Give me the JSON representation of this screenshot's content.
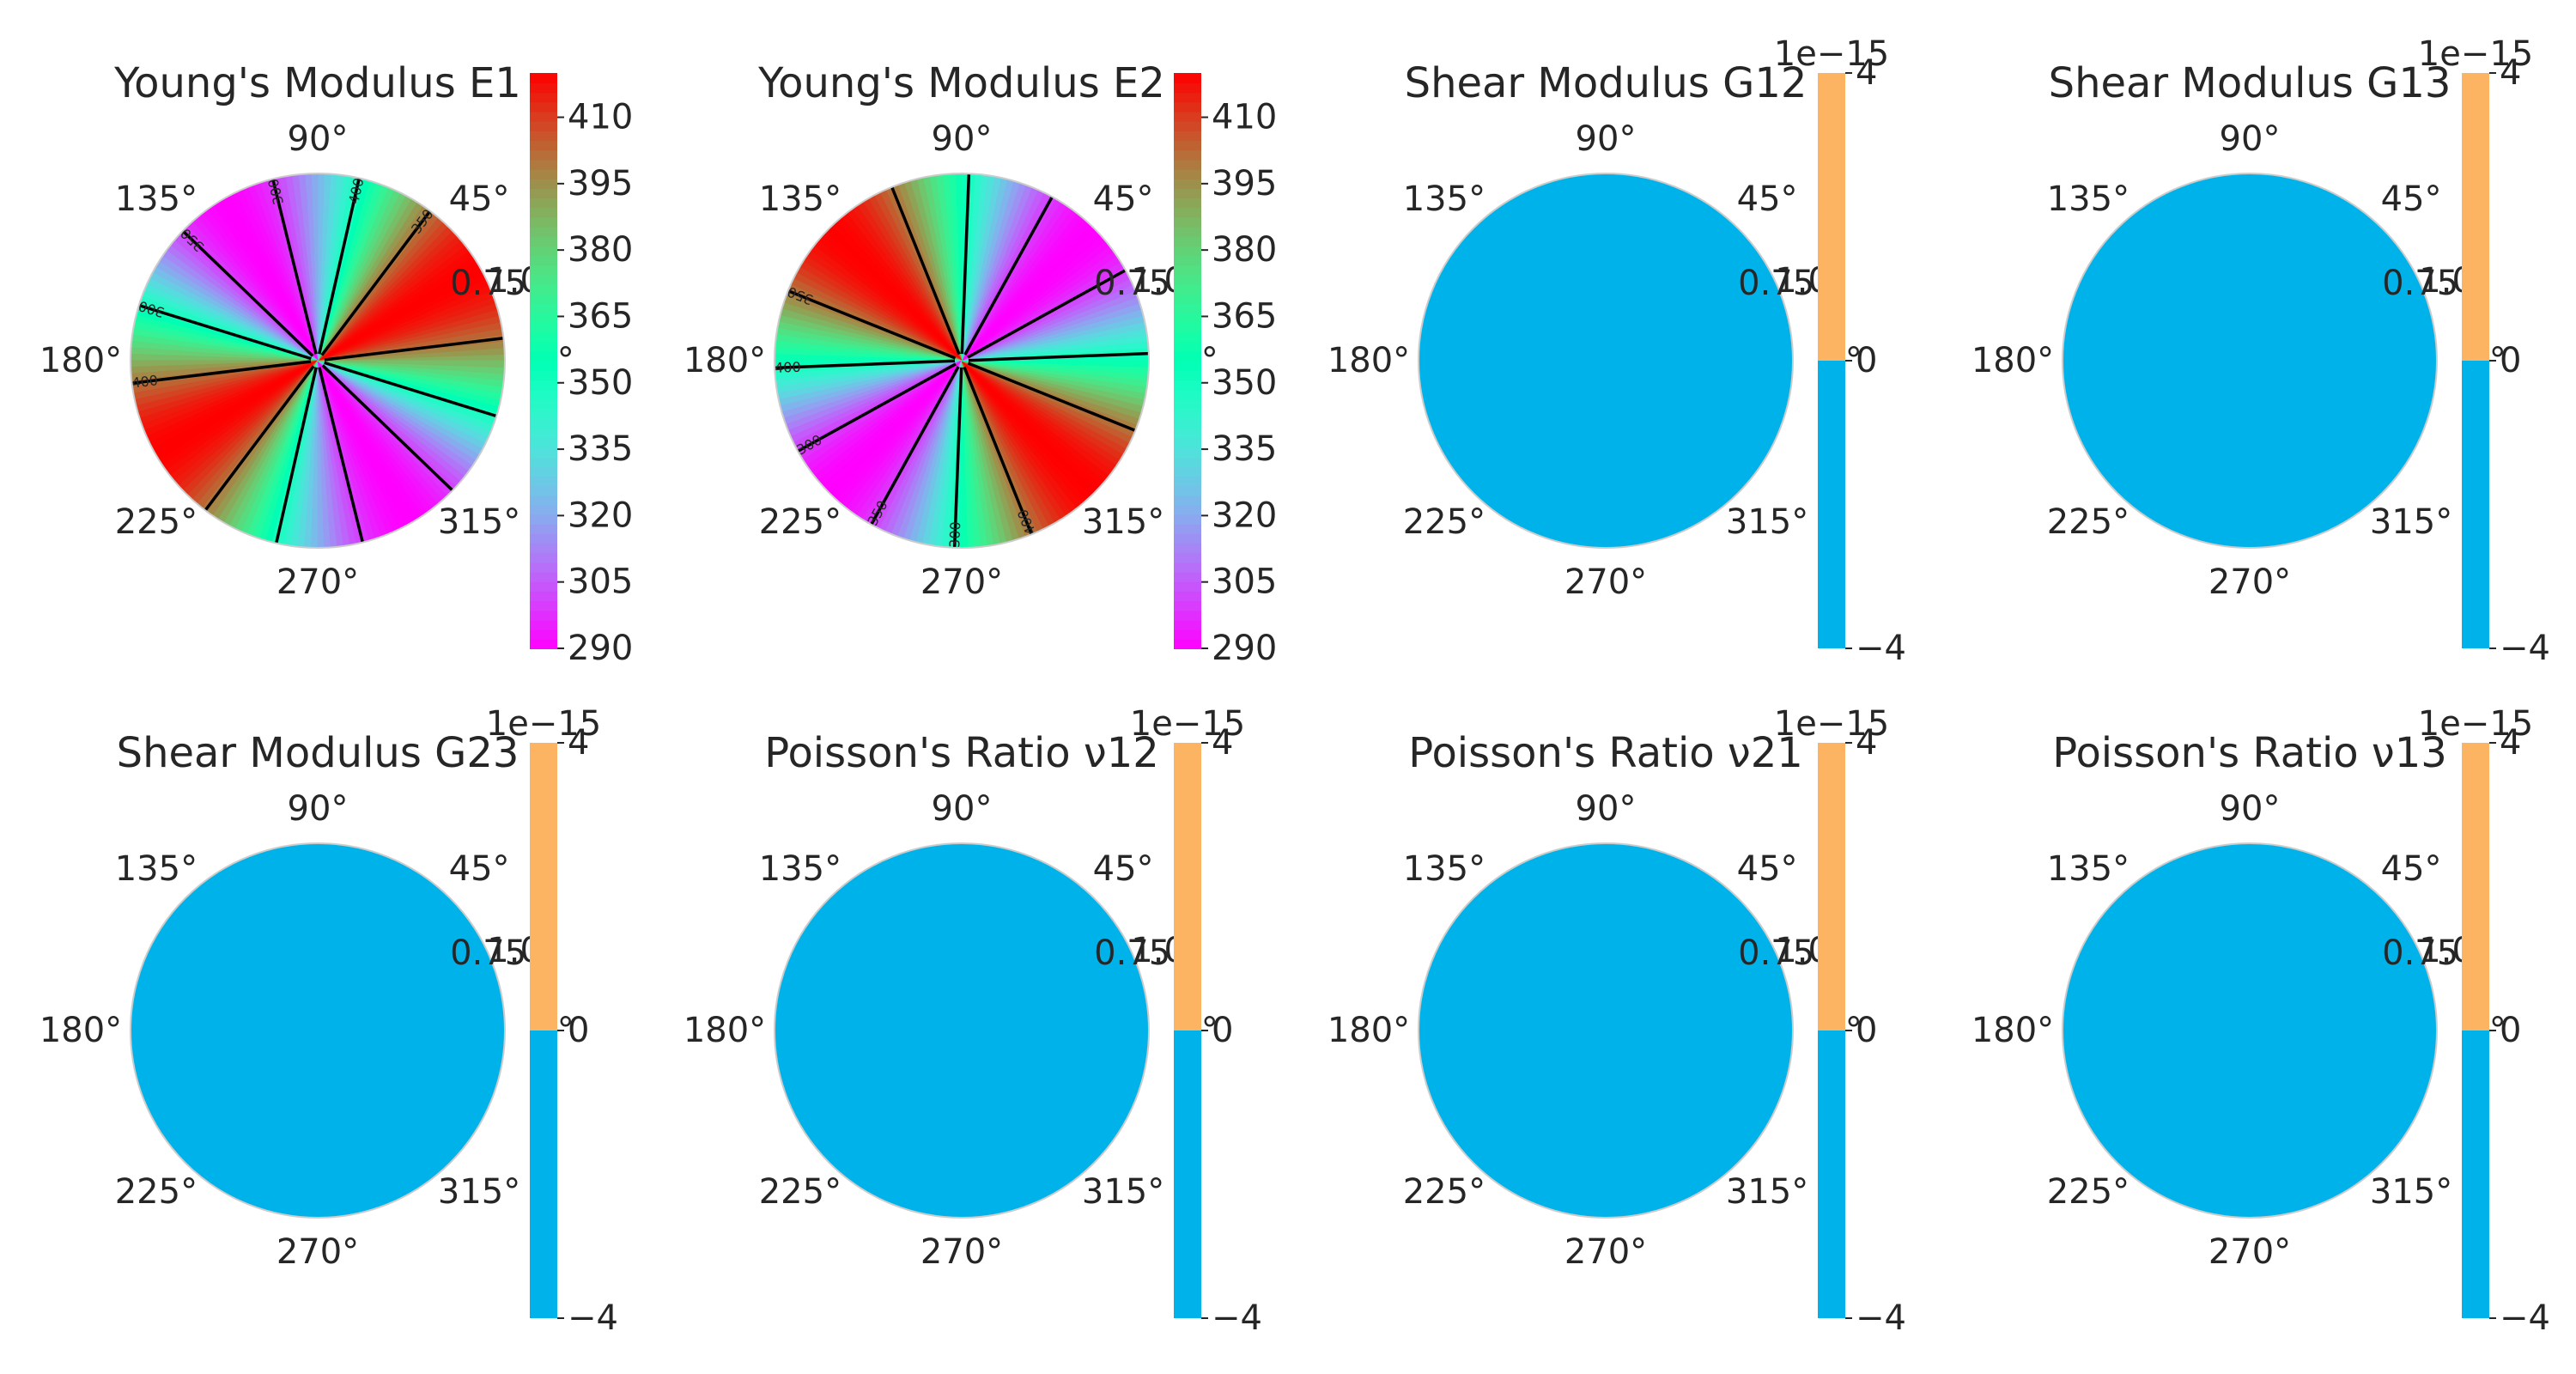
{
  "chart_data": [
    {
      "type": "heatmap",
      "subtype": "polar",
      "title": "Young's Modulus E1",
      "angle_labels": [
        "0°",
        "45°",
        "90°",
        "135°",
        "180°",
        "225°",
        "270°",
        "315°"
      ],
      "radial_tick_labels": [
        "1.0",
        "0.75"
      ],
      "colormap": "rainbow",
      "colorbar": {
        "min": 290,
        "max": 420,
        "ticks": [
          "290",
          "305",
          "320",
          "335",
          "350",
          "365",
          "380",
          "395",
          "410"
        ]
      },
      "field": {
        "angle_of_max_deg": 30,
        "min": 290,
        "max": 420
      },
      "contours": {
        "levels": [
          300,
          350,
          400
        ],
        "line_color": "#000000",
        "labels": [
          "300",
          "350",
          "400",
          "300",
          "350",
          "400",
          "0"
        ]
      }
    },
    {
      "type": "heatmap",
      "subtype": "polar",
      "title": "Young's Modulus E2",
      "angle_labels": [
        "0°",
        "45°",
        "90°",
        "135°",
        "180°",
        "225°",
        "270°",
        "315°"
      ],
      "radial_tick_labels": [
        "1.0",
        "0.75"
      ],
      "colormap": "rainbow",
      "colorbar": {
        "min": 290,
        "max": 420,
        "ticks": [
          "290",
          "305",
          "320",
          "335",
          "350",
          "365",
          "380",
          "395",
          "410"
        ]
      },
      "field": {
        "angle_of_max_deg": 135,
        "min": 290,
        "max": 420
      },
      "contours": {
        "levels": [
          300,
          350,
          400
        ],
        "line_color": "#000000",
        "labels": [
          "300",
          "350",
          "400",
          "300",
          "350",
          "400"
        ]
      }
    },
    {
      "type": "heatmap",
      "subtype": "polar",
      "title": "Shear Modulus G12",
      "angle_labels": [
        "0°",
        "45°",
        "90°",
        "135°",
        "180°",
        "225°",
        "270°",
        "315°"
      ],
      "radial_tick_labels": [
        "1.0",
        "0.75"
      ],
      "fill_color": "#00b2ea",
      "colorbar": {
        "offset_label": "1e−15",
        "ticks": [
          "−4",
          "0",
          "4"
        ],
        "upper_color": "#fdb462",
        "lower_color": "#00b2ea"
      }
    },
    {
      "type": "heatmap",
      "subtype": "polar",
      "title": "Shear Modulus G13",
      "angle_labels": [
        "0°",
        "45°",
        "90°",
        "135°",
        "180°",
        "225°",
        "270°",
        "315°"
      ],
      "radial_tick_labels": [
        "1.0",
        "0.75"
      ],
      "fill_color": "#00b2ea",
      "colorbar": {
        "offset_label": "1e−15",
        "ticks": [
          "−4",
          "0",
          "4"
        ],
        "upper_color": "#fdb462",
        "lower_color": "#00b2ea"
      }
    },
    {
      "type": "heatmap",
      "subtype": "polar",
      "title": "Shear Modulus G23",
      "angle_labels": [
        "0°",
        "45°",
        "90°",
        "135°",
        "180°",
        "225°",
        "270°",
        "315°"
      ],
      "radial_tick_labels": [
        "1.0",
        "0.75"
      ],
      "fill_color": "#00b2ea",
      "colorbar": {
        "offset_label": "1e−15",
        "ticks": [
          "−4",
          "0",
          "4"
        ],
        "upper_color": "#fdb462",
        "lower_color": "#00b2ea"
      }
    },
    {
      "type": "heatmap",
      "subtype": "polar",
      "title": "Poisson's Ratio ν12",
      "angle_labels": [
        "0°",
        "45°",
        "90°",
        "135°",
        "180°",
        "225°",
        "270°",
        "315°"
      ],
      "radial_tick_labels": [
        "1.0",
        "0.75"
      ],
      "fill_color": "#00b2ea",
      "colorbar": {
        "offset_label": "1e−15",
        "ticks": [
          "−4",
          "0",
          "4"
        ],
        "upper_color": "#fdb462",
        "lower_color": "#00b2ea"
      }
    },
    {
      "type": "heatmap",
      "subtype": "polar",
      "title": "Poisson's Ratio ν21",
      "angle_labels": [
        "0°",
        "45°",
        "90°",
        "135°",
        "180°",
        "225°",
        "270°",
        "315°"
      ],
      "radial_tick_labels": [
        "1.0",
        "0.75"
      ],
      "fill_color": "#00b2ea",
      "colorbar": {
        "offset_label": "1e−15",
        "ticks": [
          "−4",
          "0",
          "4"
        ],
        "upper_color": "#fdb462",
        "lower_color": "#00b2ea"
      }
    },
    {
      "type": "heatmap",
      "subtype": "polar",
      "title": "Poisson's Ratio ν13",
      "angle_labels": [
        "0°",
        "45°",
        "90°",
        "135°",
        "180°",
        "225°",
        "270°",
        "315°"
      ],
      "radial_tick_labels": [
        "1.0",
        "0.75"
      ],
      "fill_color": "#00b2ea",
      "colorbar": {
        "offset_label": "1e−15",
        "ticks": [
          "−4",
          "0",
          "4"
        ],
        "upper_color": "#fdb462",
        "lower_color": "#00b2ea"
      }
    }
  ]
}
